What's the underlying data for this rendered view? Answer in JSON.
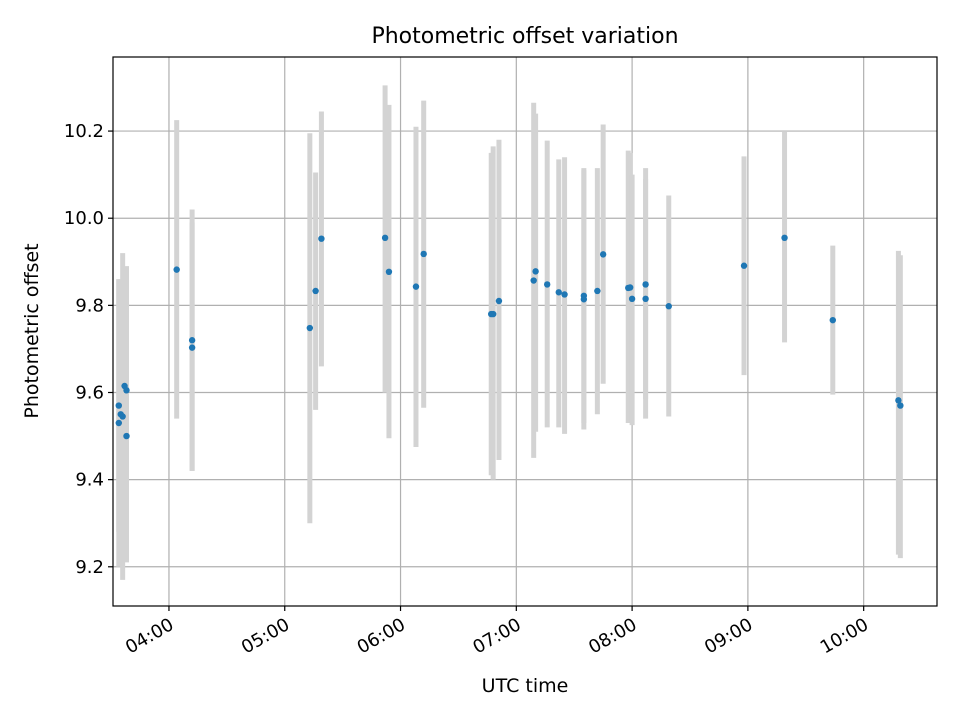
{
  "chart_data": {
    "type": "scatter",
    "title": "Photometric offset variation",
    "xlabel": "UTC time",
    "ylabel": "Photometric offset",
    "x_tick_labels": [
      "04:00",
      "05:00",
      "06:00",
      "07:00",
      "08:00",
      "09:00",
      "10:00"
    ],
    "x_ticks": [
      4,
      5,
      6,
      7,
      8,
      9,
      10
    ],
    "y_tick_labels": [
      "9.2",
      "9.4",
      "9.6",
      "9.8",
      "10.0",
      "10.2"
    ],
    "y_ticks": [
      9.2,
      9.4,
      9.6,
      9.8,
      10.0,
      10.2
    ],
    "xlim": [
      "03:31",
      "10:38"
    ],
    "ylim": [
      9.11,
      10.37
    ],
    "grid": true,
    "colors": {
      "points": "#1f77b4",
      "errorbars": "#d3d3d3",
      "grid": "#b0b0b0"
    },
    "series": [
      {
        "points": [
          {
            "x": "03:34",
            "y": 9.53,
            "lo": 9.2,
            "hi": 9.86
          },
          {
            "x": "03:34",
            "y": 9.57,
            "lo": 9.28,
            "hi": 9.86
          },
          {
            "x": "03:35",
            "y": 9.55,
            "lo": 9.23,
            "hi": 9.86
          },
          {
            "x": "03:36",
            "y": 9.545,
            "lo": 9.17,
            "hi": 9.92
          },
          {
            "x": "03:37",
            "y": 9.615,
            "lo": 9.36,
            "hi": 9.86
          },
          {
            "x": "03:38",
            "y": 9.5,
            "lo": 9.21,
            "hi": 9.79
          },
          {
            "x": "03:38",
            "y": 9.605,
            "lo": 9.32,
            "hi": 9.89
          },
          {
            "x": "04:04",
            "y": 9.882,
            "lo": 9.54,
            "hi": 10.225
          },
          {
            "x": "04:12",
            "y": 9.703,
            "lo": 9.42,
            "hi": 9.99
          },
          {
            "x": "04:12",
            "y": 9.72,
            "lo": 9.42,
            "hi": 10.02
          },
          {
            "x": "05:13",
            "y": 9.748,
            "lo": 9.3,
            "hi": 10.195
          },
          {
            "x": "05:16",
            "y": 9.833,
            "lo": 9.56,
            "hi": 10.105
          },
          {
            "x": "05:19",
            "y": 9.953,
            "lo": 9.66,
            "hi": 10.245
          },
          {
            "x": "05:52",
            "y": 9.955,
            "lo": 9.6,
            "hi": 10.305
          },
          {
            "x": "05:54",
            "y": 9.877,
            "lo": 9.495,
            "hi": 10.26
          },
          {
            "x": "06:08",
            "y": 9.843,
            "lo": 9.475,
            "hi": 10.21
          },
          {
            "x": "06:12",
            "y": 9.918,
            "lo": 9.565,
            "hi": 10.27
          },
          {
            "x": "06:47",
            "y": 9.78,
            "lo": 9.41,
            "hi": 10.15
          },
          {
            "x": "06:48",
            "y": 9.78,
            "lo": 9.4,
            "hi": 10.165
          },
          {
            "x": "06:51",
            "y": 9.81,
            "lo": 9.445,
            "hi": 10.18
          },
          {
            "x": "07:09",
            "y": 9.857,
            "lo": 9.45,
            "hi": 10.265
          },
          {
            "x": "07:10",
            "y": 9.878,
            "lo": 9.51,
            "hi": 10.24
          },
          {
            "x": "07:16",
            "y": 9.848,
            "lo": 9.52,
            "hi": 10.178
          },
          {
            "x": "07:22",
            "y": 9.83,
            "lo": 9.52,
            "hi": 10.135
          },
          {
            "x": "07:25",
            "y": 9.825,
            "lo": 9.505,
            "hi": 10.14
          },
          {
            "x": "07:35",
            "y": 9.822,
            "lo": 9.53,
            "hi": 10.115
          },
          {
            "x": "07:35",
            "y": 9.814,
            "lo": 9.515,
            "hi": 10.11
          },
          {
            "x": "07:42",
            "y": 9.833,
            "lo": 9.55,
            "hi": 10.115
          },
          {
            "x": "07:45",
            "y": 9.917,
            "lo": 9.62,
            "hi": 10.215
          },
          {
            "x": "07:58",
            "y": 9.84,
            "lo": 9.53,
            "hi": 10.155
          },
          {
            "x": "07:59",
            "y": 9.841,
            "lo": 9.53,
            "hi": 10.15
          },
          {
            "x": "08:00",
            "y": 9.815,
            "lo": 9.525,
            "hi": 10.1
          },
          {
            "x": "08:07",
            "y": 9.848,
            "lo": 9.585,
            "hi": 10.115
          },
          {
            "x": "08:07",
            "y": 9.815,
            "lo": 9.54,
            "hi": 10.09
          },
          {
            "x": "08:19",
            "y": 9.798,
            "lo": 9.545,
            "hi": 10.052
          },
          {
            "x": "08:58",
            "y": 9.891,
            "lo": 9.64,
            "hi": 10.142
          },
          {
            "x": "09:19",
            "y": 9.955,
            "lo": 9.715,
            "hi": 10.198
          },
          {
            "x": "09:44",
            "y": 9.766,
            "lo": 9.595,
            "hi": 9.937
          },
          {
            "x": "10:18",
            "y": 9.582,
            "lo": 9.228,
            "hi": 9.925
          },
          {
            "x": "10:19",
            "y": 9.57,
            "lo": 9.22,
            "hi": 9.915
          }
        ]
      }
    ]
  }
}
